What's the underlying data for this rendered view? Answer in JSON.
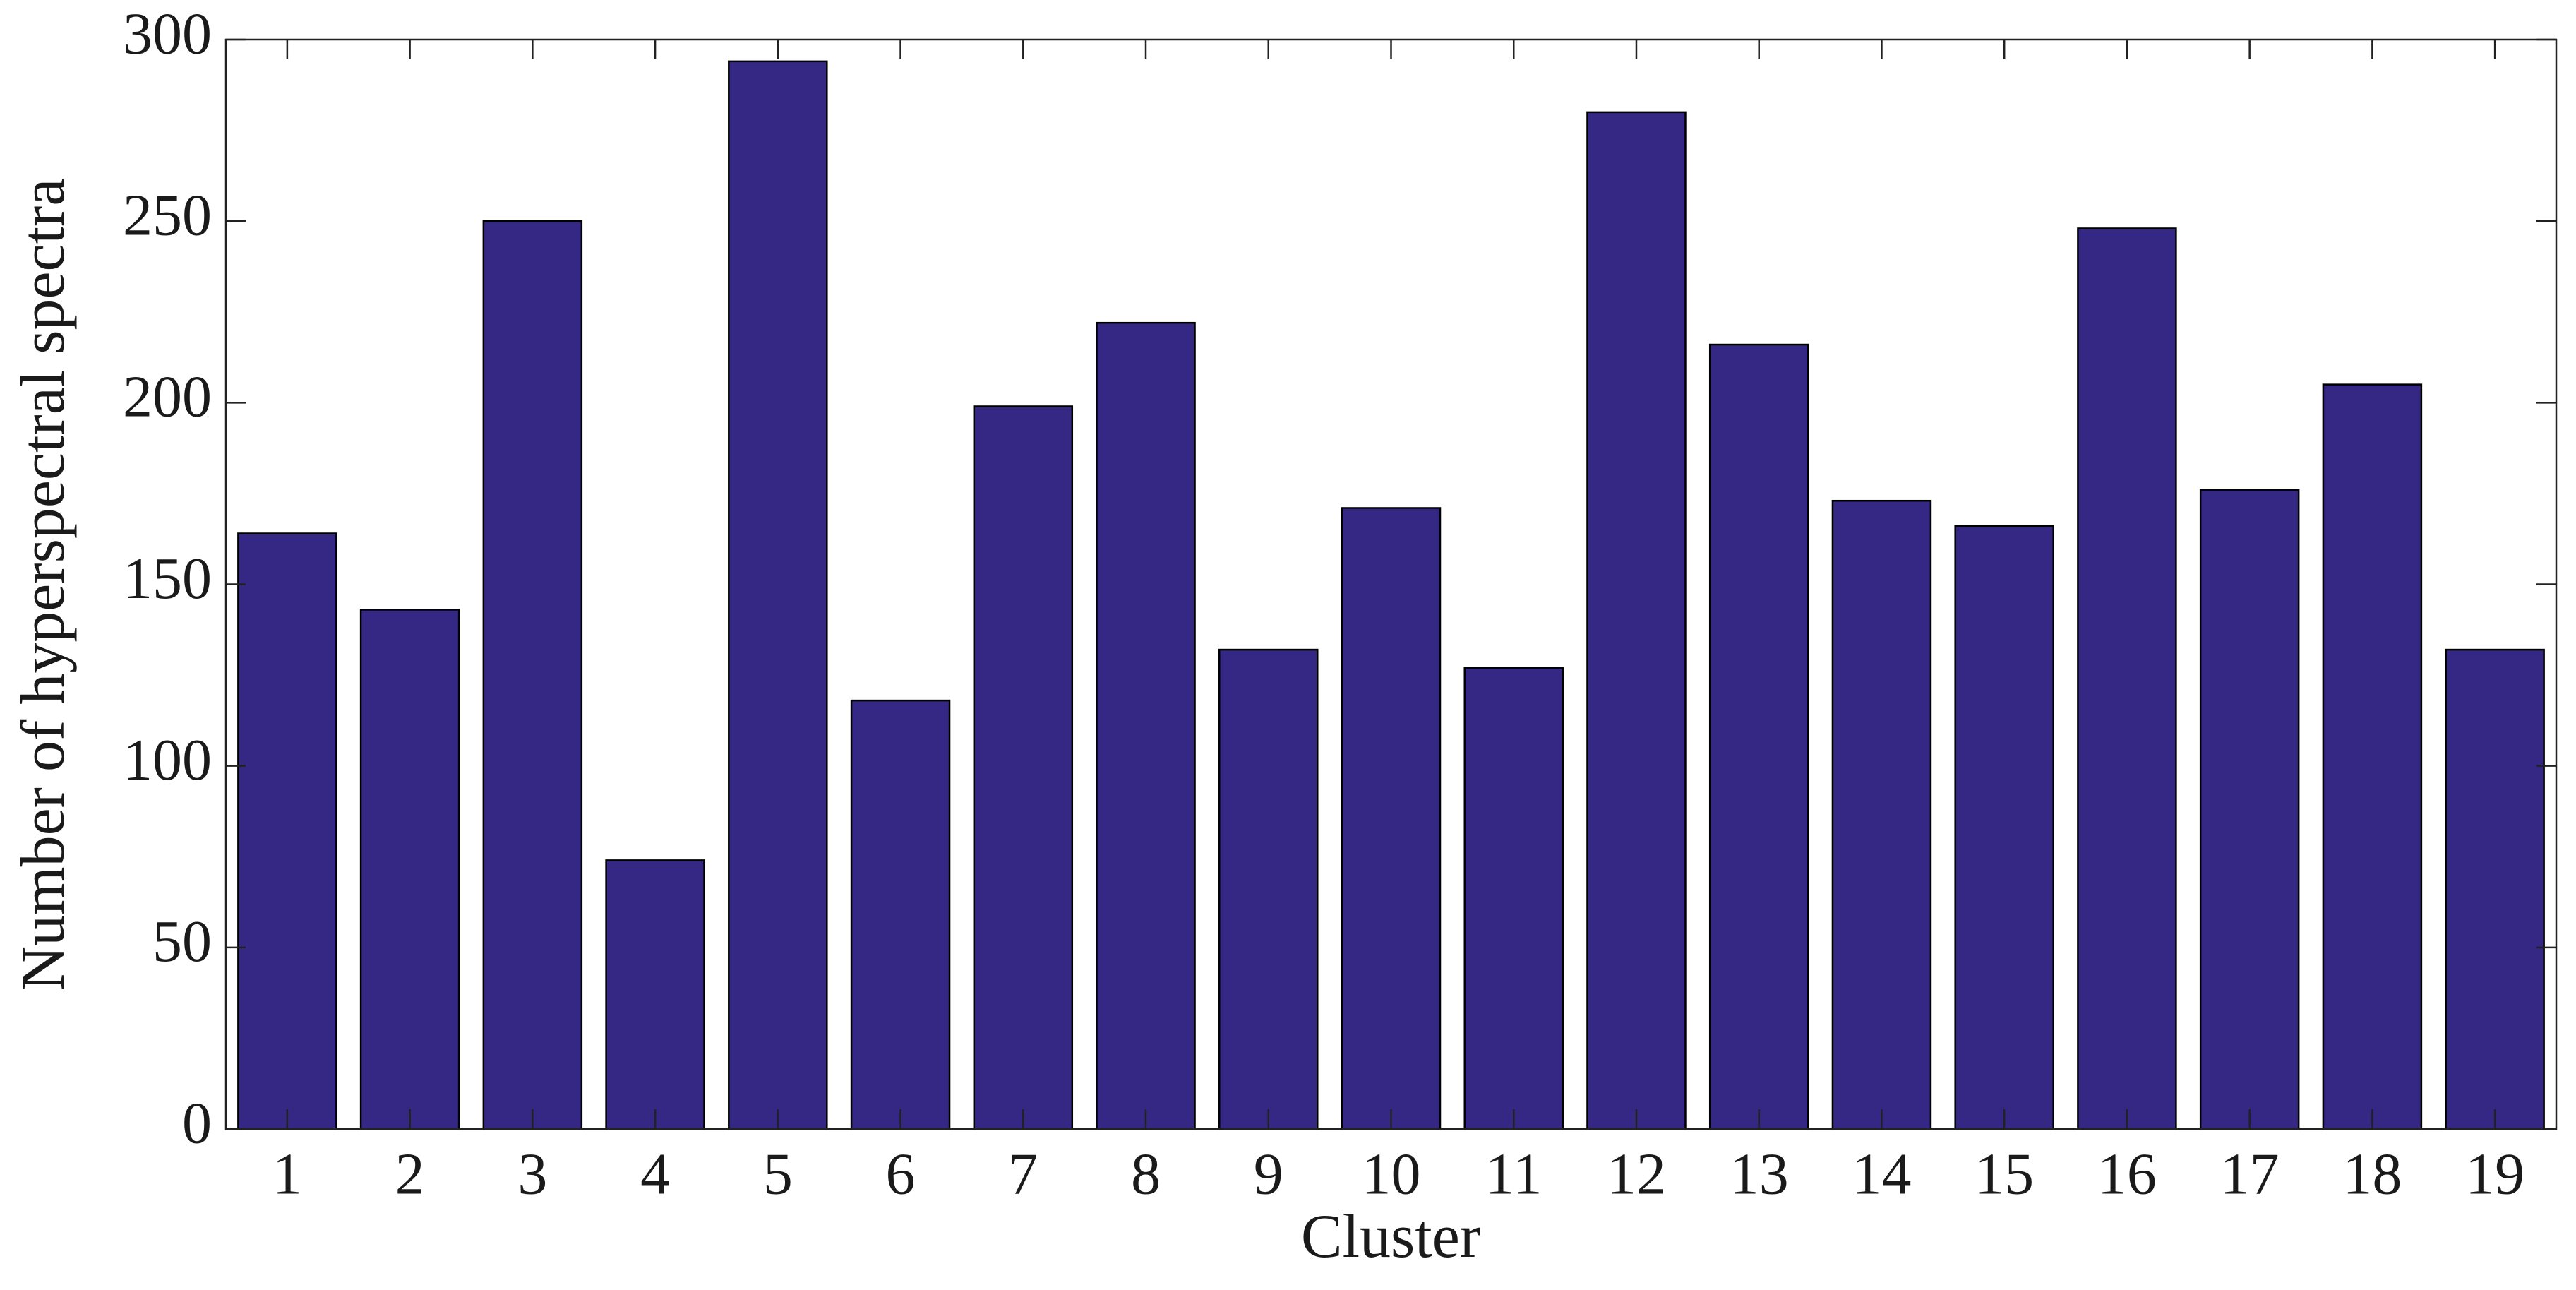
{
  "chart_data": {
    "type": "bar",
    "x_label": "Cluster",
    "y_label": "Number of hyperspectral spectra",
    "categories": [
      "1",
      "2",
      "3",
      "4",
      "5",
      "6",
      "7",
      "8",
      "9",
      "10",
      "11",
      "12",
      "13",
      "14",
      "15",
      "16",
      "17",
      "18",
      "19"
    ],
    "values": [
      164,
      143,
      250,
      74,
      294,
      118,
      199,
      222,
      132,
      171,
      127,
      280,
      216,
      173,
      166,
      248,
      176,
      205,
      132
    ],
    "color": "#352885",
    "ylim": [
      0,
      300
    ],
    "yticks": [
      0,
      50,
      100,
      150,
      200,
      250,
      300
    ],
    "grid": false
  }
}
